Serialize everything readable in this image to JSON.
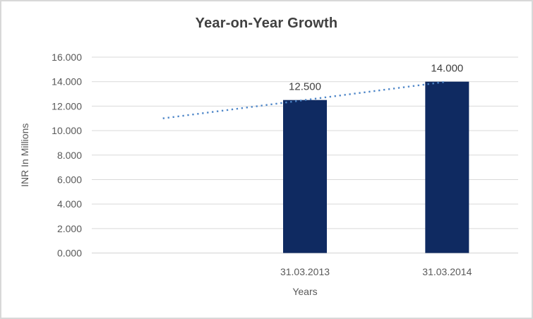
{
  "window": {
    "background": "#ffffff",
    "frame_border_color": "#d8d8d8"
  },
  "chart_data": {
    "type": "bar",
    "title": "Year-on-Year Growth",
    "xlabel": "Years",
    "ylabel": "INR In Millions",
    "categories": [
      "",
      "31.03.2013",
      "31.03.2014"
    ],
    "series": [
      {
        "name": "bar-series",
        "type": "bar",
        "values": [
          null,
          12.5,
          14.0
        ],
        "data_labels": [
          "",
          "12.500",
          "14.000"
        ],
        "color": "#0f2a61"
      },
      {
        "name": "trendline-series",
        "type": "dotted-line",
        "values": [
          11.0,
          12.5,
          14.0
        ],
        "color": "#4e86c8"
      }
    ],
    "ylim": [
      0,
      16
    ],
    "ytick_step": 2,
    "ytick_labels": [
      "0.000",
      "2.000",
      "4.000",
      "6.000",
      "8.000",
      "10.000",
      "12.000",
      "14.000",
      "16.000"
    ],
    "grid": true,
    "gridline_color": "#d9d9d9",
    "axis_line_color": "#d2d2d2",
    "legend": "none",
    "text_colors": {
      "title": "#404040",
      "axis": "#595959",
      "data_label": "#404040"
    }
  }
}
